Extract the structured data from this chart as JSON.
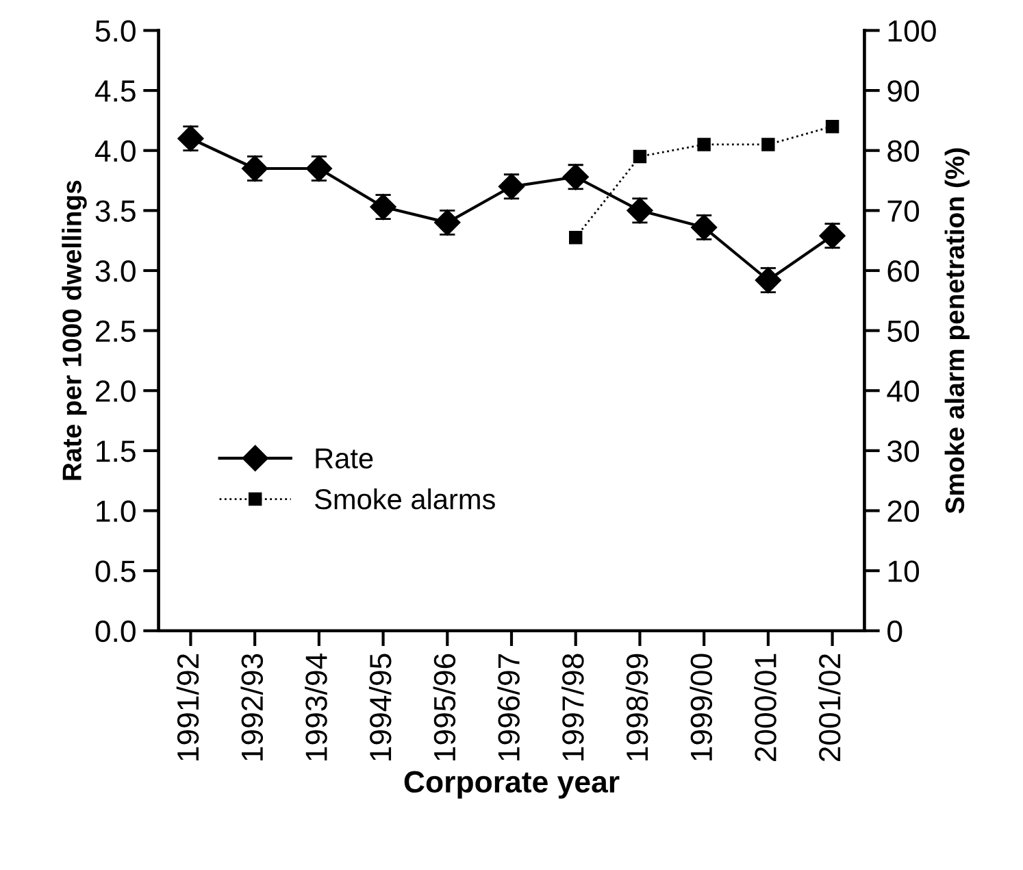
{
  "chart_data": {
    "type": "line",
    "xlabel": "Corporate year",
    "ylabel": "Rate per 1000 dwellings",
    "y2label": "Smoke alarm penetration (%)",
    "categories": [
      "1991/92",
      "1992/93",
      "1993/94",
      "1994/95",
      "1995/96",
      "1996/97",
      "1997/98",
      "1998/99",
      "1999/00",
      "2000/01",
      "2001/02"
    ],
    "series": [
      {
        "name": "Rate",
        "color": "#000000",
        "marker": "diamond",
        "line_style": "solid",
        "values": [
          4.1,
          3.85,
          3.85,
          3.53,
          3.4,
          3.7,
          3.78,
          3.5,
          3.36,
          2.92,
          3.29
        ],
        "errors": [
          0.1,
          0.1,
          0.1,
          0.1,
          0.1,
          0.1,
          0.1,
          0.1,
          0.1,
          0.1,
          0.1
        ]
      },
      {
        "name": "Smoke alarms",
        "color": "#000000",
        "marker": "square",
        "line_style": "dotted",
        "axis": "y2",
        "values": [
          null,
          null,
          null,
          null,
          null,
          null,
          65.5,
          79,
          81,
          81,
          84
        ]
      }
    ],
    "ylim": [
      0,
      5
    ],
    "yticks": [
      {
        "value": 0,
        "label": "0.0"
      },
      {
        "value": 0.5,
        "label": "0.5"
      },
      {
        "value": 1,
        "label": "1.0"
      },
      {
        "value": 1.5,
        "label": "1.5"
      },
      {
        "value": 2,
        "label": "2.0"
      },
      {
        "value": 2.5,
        "label": "2.5"
      },
      {
        "value": 3,
        "label": "3.0"
      },
      {
        "value": 3.5,
        "label": "3.5"
      },
      {
        "value": 4,
        "label": "4.0"
      },
      {
        "value": 4.5,
        "label": "4.5"
      },
      {
        "value": 5,
        "label": "5.0"
      }
    ],
    "y2lim": [
      0,
      100
    ],
    "y2ticks": [
      0,
      10,
      20,
      30,
      40,
      50,
      60,
      70,
      80,
      90,
      100
    ],
    "legend": "bottom left",
    "grid": false
  }
}
